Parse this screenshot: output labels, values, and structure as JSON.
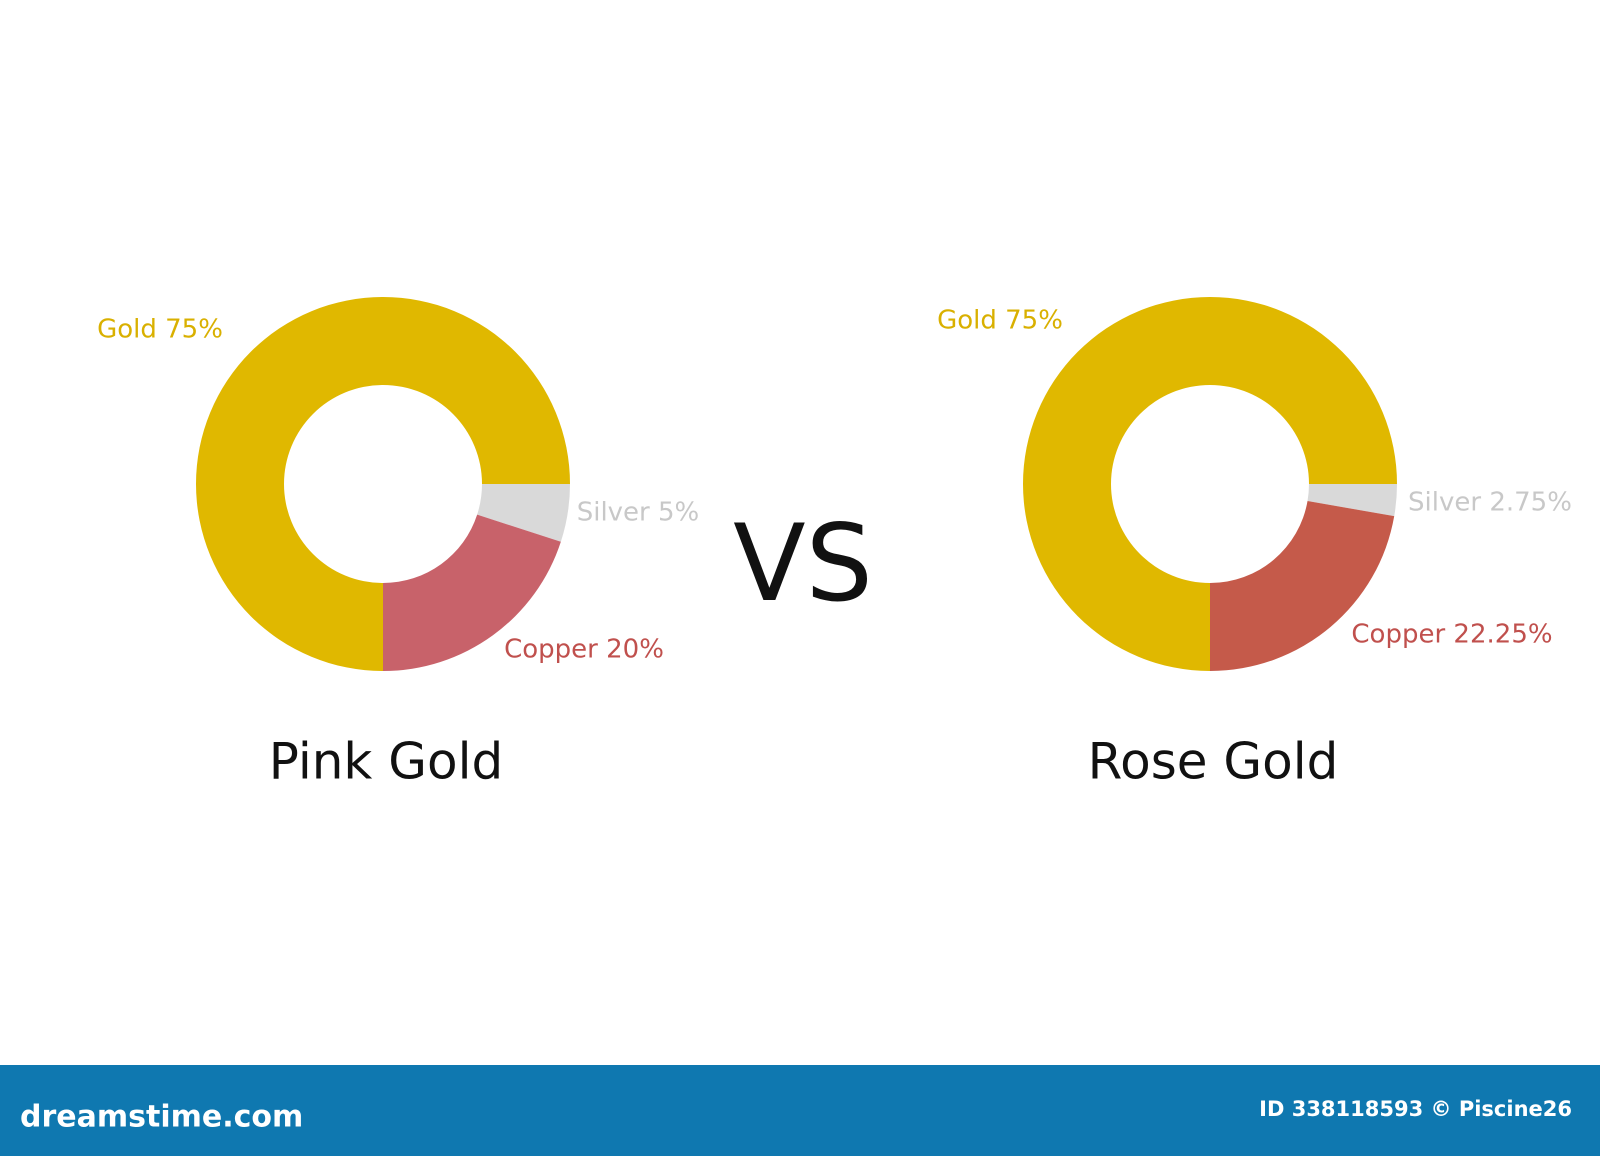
{
  "chart_data": [
    {
      "type": "pie",
      "title": "Pink Gold",
      "donut": true,
      "values": [
        5,
        20,
        75
      ],
      "value_labels": [
        "Silver 5%",
        "Copper 20%",
        "Gold 75%"
      ],
      "colors": [
        "#d9d9d9",
        "#c8626a",
        "#e0b800"
      ],
      "label_colors": [
        "#c8c8c8",
        "#c0504d",
        "#d9b000"
      ]
    },
    {
      "type": "pie",
      "title": "Rose Gold",
      "donut": true,
      "values": [
        2.75,
        22.25,
        75
      ],
      "value_labels": [
        "Silver 2.75%",
        "Copper 22.25%",
        "Gold 75%"
      ],
      "colors": [
        "#d9d9d9",
        "#c55a4a",
        "#e0b800"
      ],
      "label_colors": [
        "#c8c8c8",
        "#c0504d",
        "#d9b000"
      ]
    }
  ],
  "vs_label": "VS",
  "footer": {
    "brand": "dreamstime.com",
    "credit": "ID 338118593 © Piscine26"
  }
}
